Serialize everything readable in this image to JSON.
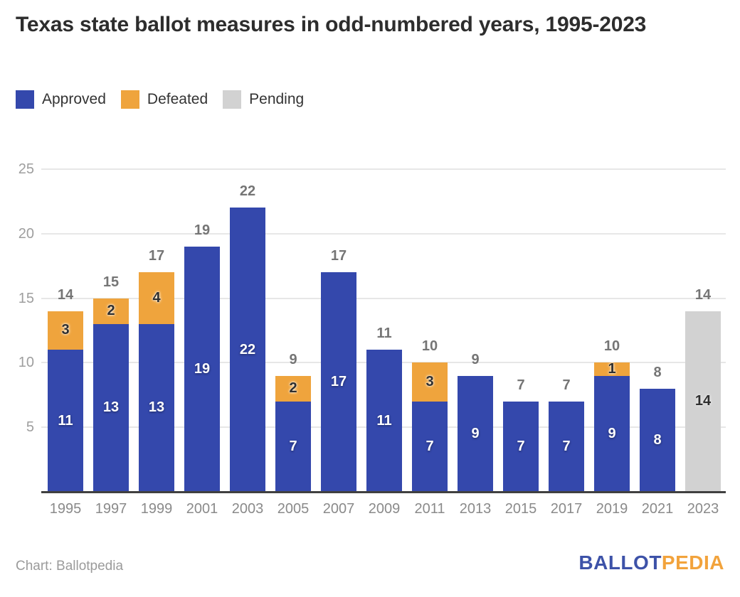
{
  "title": "Texas state ballot measures in odd-numbered years, 1995-2023",
  "legend": [
    {
      "label": "Approved",
      "key": "approved"
    },
    {
      "label": "Defeated",
      "key": "defeated"
    },
    {
      "label": "Pending",
      "key": "pending"
    }
  ],
  "colors": {
    "approved": "#3448AC",
    "defeated": "#EFA43D",
    "pending": "#D2D2D2",
    "gridline": "#E7E7E7",
    "axis_line": "#404040",
    "tick_label": "#9E9E9E",
    "total_label": "#757575",
    "logo_blue": "#3D52A8",
    "logo_orange": "#F2A33C"
  },
  "chart_data": {
    "type": "bar",
    "stacked": true,
    "title": "Texas state ballot measures in odd-numbered years, 1995-2023",
    "categories": [
      "1995",
      "1997",
      "1999",
      "2001",
      "2003",
      "2005",
      "2007",
      "2009",
      "2011",
      "2013",
      "2015",
      "2017",
      "2019",
      "2021",
      "2023"
    ],
    "series": [
      {
        "name": "Approved",
        "key": "approved",
        "color": "#3448AC",
        "values": [
          11,
          13,
          13,
          19,
          22,
          7,
          17,
          11,
          7,
          9,
          7,
          7,
          9,
          8,
          0
        ]
      },
      {
        "name": "Defeated",
        "key": "defeated",
        "color": "#EFA43D",
        "values": [
          3,
          2,
          4,
          0,
          0,
          2,
          0,
          0,
          3,
          0,
          0,
          0,
          1,
          0,
          0
        ]
      },
      {
        "name": "Pending",
        "key": "pending",
        "color": "#D2D2D2",
        "values": [
          0,
          0,
          0,
          0,
          0,
          0,
          0,
          0,
          0,
          0,
          0,
          0,
          0,
          0,
          14
        ]
      }
    ],
    "totals": [
      14,
      15,
      17,
      19,
      22,
      9,
      17,
      11,
      10,
      9,
      7,
      7,
      10,
      8,
      14
    ],
    "xlabel": "",
    "ylabel": "",
    "ylim": [
      0,
      25
    ],
    "yticks": [
      5,
      10,
      15,
      20,
      25
    ],
    "grid": true,
    "legend_position": "top-left"
  },
  "footer": {
    "credit": "Chart: Ballotpedia",
    "logo": {
      "first": "BALLOT",
      "second": "PEDIA"
    }
  }
}
